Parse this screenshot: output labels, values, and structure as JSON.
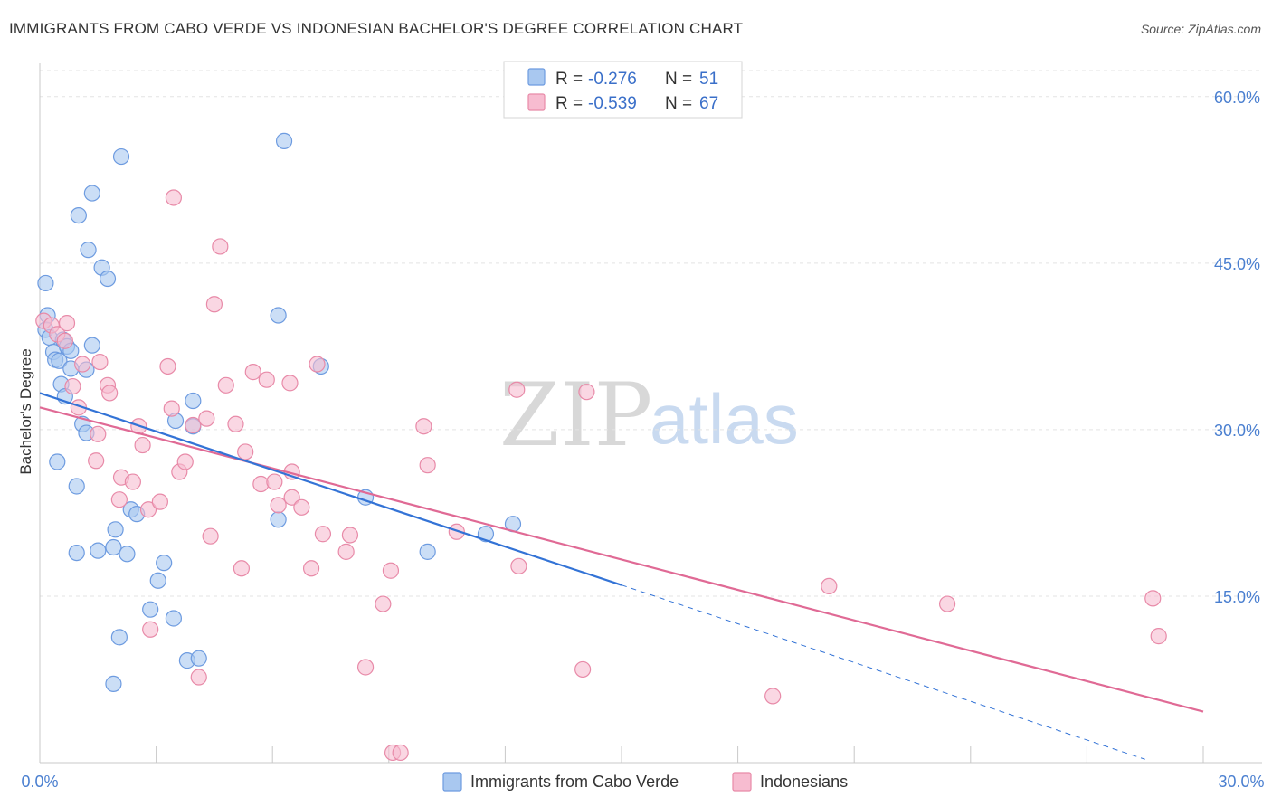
{
  "title": "IMMIGRANTS FROM CABO VERDE VS INDONESIAN BACHELOR'S DEGREE CORRELATION CHART",
  "source": "Source: ZipAtlas.com",
  "watermark": {
    "zip": "ZIP",
    "atlas": "atlas"
  },
  "legend": {
    "rows": [
      {
        "r_label": "R =",
        "r_value": "-0.276",
        "n_label": "N =",
        "n_value": "51",
        "color": "#a9c8f0",
        "stroke": "#6d9be0"
      },
      {
        "r_label": "R =",
        "r_value": "-0.539",
        "n_label": "N =",
        "n_value": "67",
        "color": "#f7bcd0",
        "stroke": "#e88aa8"
      }
    ]
  },
  "chart_data": {
    "type": "scatter",
    "title": "IMMIGRANTS FROM CABO VERDE VS INDONESIAN BACHELOR'S DEGREE CORRELATION CHART",
    "xlabel": "",
    "ylabel": "Bachelor's Degree",
    "xlim": [
      0,
      30
    ],
    "ylim": [
      0,
      63
    ],
    "x_tick_labels": [
      "0.0%",
      "30.0%"
    ],
    "y_ticks": [
      15,
      30,
      45,
      60
    ],
    "y_tick_labels": [
      "15.0%",
      "30.0%",
      "45.0%",
      "60.0%"
    ],
    "grid": true,
    "series": [
      {
        "name": "Immigrants from Cabo Verde",
        "color": "#a9c8f0",
        "stroke": "#6d9be0",
        "line_color": "#3373d6",
        "trend": {
          "x0": 0,
          "y0": 33.3,
          "x1": 15,
          "y1": 16.0,
          "dash_x1": 28.5,
          "dash_y1": 0.3
        },
        "points": [
          [
            0.15,
            43.2
          ],
          [
            0.2,
            40.3
          ],
          [
            0.15,
            39.0
          ],
          [
            0.25,
            38.3
          ],
          [
            0.35,
            37.0
          ],
          [
            0.4,
            36.3
          ],
          [
            0.5,
            36.2
          ],
          [
            0.6,
            38.1
          ],
          [
            0.7,
            37.5
          ],
          [
            0.8,
            37.1
          ],
          [
            0.55,
            34.1
          ],
          [
            0.65,
            33.0
          ],
          [
            0.8,
            35.5
          ],
          [
            1.2,
            35.4
          ],
          [
            1.35,
            37.6
          ],
          [
            1.1,
            30.5
          ],
          [
            1.2,
            29.7
          ],
          [
            0.45,
            27.1
          ],
          [
            1.0,
            49.3
          ],
          [
            1.35,
            51.3
          ],
          [
            1.25,
            46.2
          ],
          [
            1.6,
            44.6
          ],
          [
            1.75,
            43.6
          ],
          [
            2.1,
            54.6
          ],
          [
            0.95,
            24.9
          ],
          [
            2.35,
            22.8
          ],
          [
            2.5,
            22.4
          ],
          [
            1.95,
            21.0
          ],
          [
            1.9,
            19.4
          ],
          [
            2.25,
            18.8
          ],
          [
            0.95,
            18.9
          ],
          [
            1.5,
            19.1
          ],
          [
            3.2,
            18.0
          ],
          [
            3.05,
            16.4
          ],
          [
            2.85,
            13.8
          ],
          [
            3.45,
            13.0
          ],
          [
            2.05,
            11.3
          ],
          [
            1.9,
            7.1
          ],
          [
            3.8,
            9.2
          ],
          [
            4.1,
            9.4
          ],
          [
            3.5,
            30.8
          ],
          [
            3.95,
            30.3
          ],
          [
            3.95,
            32.6
          ],
          [
            6.3,
            56.0
          ],
          [
            6.15,
            40.3
          ],
          [
            7.25,
            35.7
          ],
          [
            6.15,
            21.9
          ],
          [
            8.4,
            23.9
          ],
          [
            10.0,
            19.0
          ],
          [
            11.5,
            20.6
          ],
          [
            12.2,
            21.5
          ]
        ]
      },
      {
        "name": "Indonesians",
        "color": "#f7bcd0",
        "stroke": "#e88aa8",
        "line_color": "#e06a95",
        "trend": {
          "x0": 0,
          "y0": 32.0,
          "x1": 30,
          "y1": 4.6
        },
        "points": [
          [
            0.1,
            39.8
          ],
          [
            0.3,
            39.4
          ],
          [
            0.45,
            38.6
          ],
          [
            0.65,
            38.0
          ],
          [
            0.7,
            39.6
          ],
          [
            0.85,
            33.9
          ],
          [
            1.0,
            32.0
          ],
          [
            1.1,
            35.9
          ],
          [
            1.5,
            29.6
          ],
          [
            1.45,
            27.2
          ],
          [
            1.55,
            36.1
          ],
          [
            1.75,
            34.0
          ],
          [
            1.8,
            33.3
          ],
          [
            2.05,
            23.7
          ],
          [
            2.1,
            25.7
          ],
          [
            2.4,
            25.3
          ],
          [
            2.55,
            30.3
          ],
          [
            2.65,
            28.6
          ],
          [
            2.8,
            22.8
          ],
          [
            2.85,
            12.0
          ],
          [
            3.1,
            23.5
          ],
          [
            3.3,
            35.7
          ],
          [
            3.4,
            31.9
          ],
          [
            3.6,
            26.2
          ],
          [
            3.75,
            27.1
          ],
          [
            3.95,
            30.4
          ],
          [
            4.1,
            7.7
          ],
          [
            4.3,
            31.0
          ],
          [
            4.4,
            20.4
          ],
          [
            4.5,
            41.3
          ],
          [
            4.65,
            46.5
          ],
          [
            4.8,
            34.0
          ],
          [
            5.05,
            30.5
          ],
          [
            5.2,
            17.5
          ],
          [
            5.3,
            28.0
          ],
          [
            5.5,
            35.2
          ],
          [
            5.7,
            25.1
          ],
          [
            5.85,
            34.5
          ],
          [
            6.05,
            25.3
          ],
          [
            6.15,
            23.2
          ],
          [
            6.5,
            26.2
          ],
          [
            6.5,
            23.9
          ],
          [
            6.75,
            23.0
          ],
          [
            7.0,
            17.5
          ],
          [
            7.15,
            35.9
          ],
          [
            7.3,
            20.6
          ],
          [
            8.0,
            20.5
          ],
          [
            7.9,
            19.0
          ],
          [
            8.4,
            8.6
          ],
          [
            8.85,
            14.3
          ],
          [
            9.05,
            17.3
          ],
          [
            9.1,
            0.9
          ],
          [
            9.3,
            0.9
          ],
          [
            3.45,
            50.9
          ],
          [
            9.9,
            30.3
          ],
          [
            10.0,
            26.8
          ],
          [
            10.75,
            20.8
          ],
          [
            12.3,
            33.6
          ],
          [
            12.35,
            17.7
          ],
          [
            14.1,
            33.4
          ],
          [
            14.0,
            8.4
          ],
          [
            18.9,
            6.0
          ],
          [
            20.35,
            15.9
          ],
          [
            23.4,
            14.3
          ],
          [
            28.7,
            14.8
          ],
          [
            28.85,
            11.4
          ],
          [
            6.45,
            34.2
          ]
        ]
      }
    ]
  }
}
